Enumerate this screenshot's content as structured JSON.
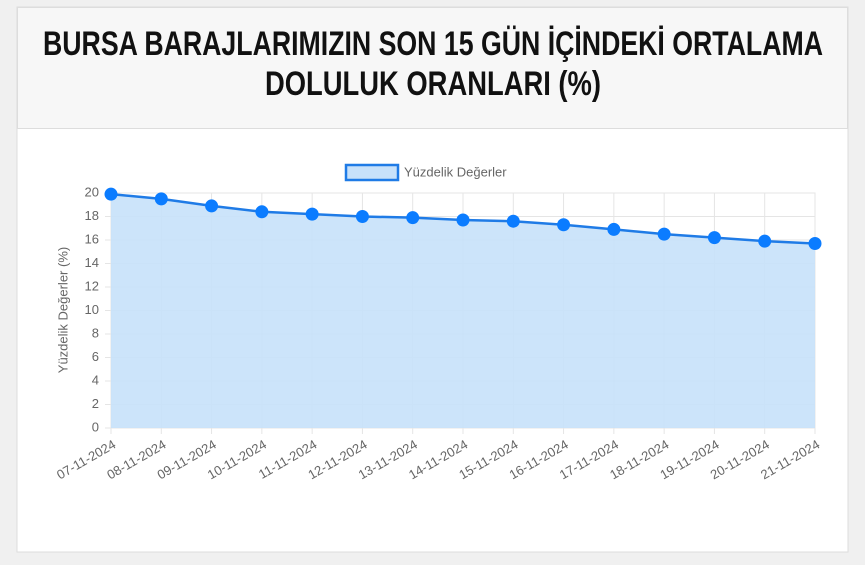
{
  "chart_data": {
    "type": "line",
    "title": [
      "BURSA BARAJLARIMIZIN SON 15 GÜN İÇİNDEKİ ORTALAMA",
      "DOLULUK ORANLARI (%)"
    ],
    "ylabel": "Yüzdelik Değerler (%)",
    "categories": [
      "07-11-2024",
      "08-11-2024",
      "09-11-2024",
      "10-11-2024",
      "11-11-2024",
      "12-11-2024",
      "13-11-2024",
      "14-11-2024",
      "15-11-2024",
      "16-11-2024",
      "17-11-2024",
      "18-11-2024",
      "19-11-2024",
      "20-11-2024",
      "21-11-2024"
    ],
    "series": [
      {
        "name": "Yüzdelik Değerler",
        "color": "#1f7be6",
        "fill": "#c7e1fa",
        "point_color": "#0b7cff",
        "values": [
          19.9,
          19.5,
          18.9,
          18.4,
          18.2,
          18.0,
          17.9,
          17.7,
          17.6,
          17.3,
          16.9,
          16.5,
          16.2,
          15.9,
          15.7
        ]
      }
    ],
    "ylim": [
      0,
      20
    ],
    "yticks": [
      0,
      2,
      4,
      6,
      8,
      10,
      12,
      14,
      16,
      18,
      20
    ],
    "grid": true,
    "legend": "top"
  }
}
